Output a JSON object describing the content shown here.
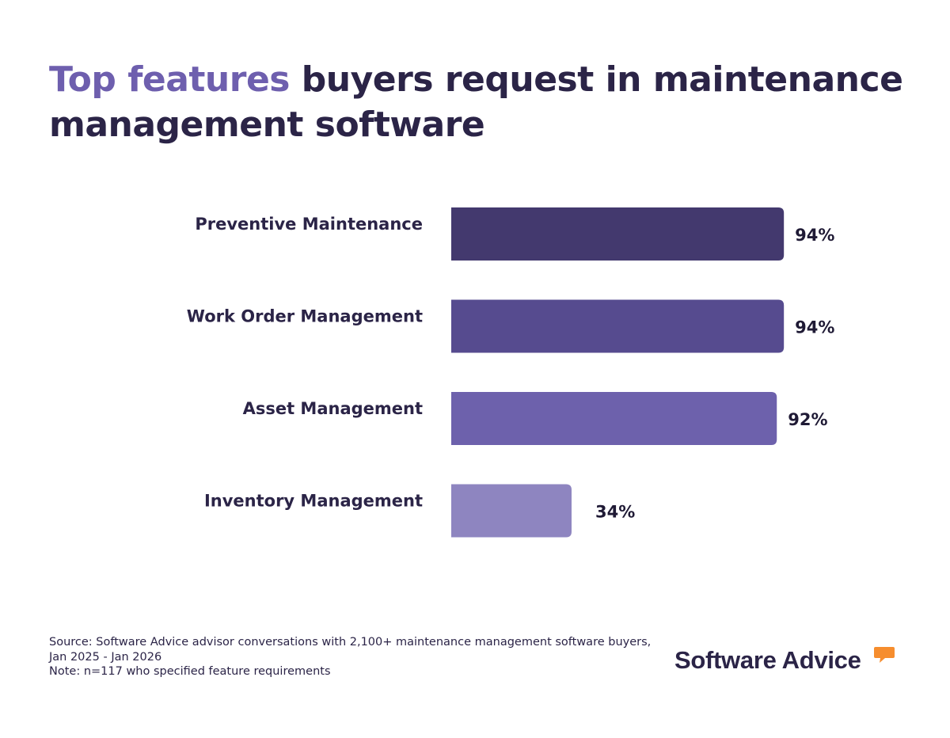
{
  "title": {
    "accent": "Top features",
    "rest": " buyers request in maintenance management software"
  },
  "colors": {
    "title_dark": "#2b2447",
    "title_accent": "#6e5fae",
    "logo_orange": "#f68d2e"
  },
  "chart_data": {
    "type": "bar",
    "orientation": "horizontal",
    "categories": [
      "Preventive Maintenance",
      "Work Order Management",
      "Asset Management",
      "Inventory Management"
    ],
    "values": [
      94,
      94,
      92,
      34
    ],
    "value_labels": [
      "94%",
      "94%",
      "92%",
      "34%"
    ],
    "bar_colors": [
      "#43396e",
      "#564b8f",
      "#6d61ac",
      "#8e85c0"
    ],
    "xlim": [
      0,
      100
    ],
    "grid": false,
    "legend": "none"
  },
  "source": {
    "line1": "Source: Software Advice advisor conversations with 2,100+ maintenance management software buyers,",
    "line2": "Jan 2025 - Jan 2026",
    "line3": "Note: n=117 who specified feature requirements"
  },
  "logo": {
    "text": "Software Advice",
    "icon": "speech-bubble-icon"
  }
}
